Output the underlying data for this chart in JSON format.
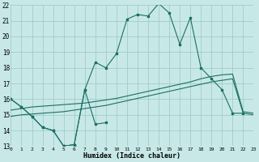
{
  "background_color": "#c8e8e8",
  "grid_color": "#a0cccc",
  "line_color": "#1a7060",
  "xlabel": "Humidex (Indice chaleur)",
  "xlim": [
    0,
    23
  ],
  "ylim": [
    13,
    22
  ],
  "yticks": [
    13,
    14,
    15,
    16,
    17,
    18,
    19,
    20,
    21,
    22
  ],
  "xticks": [
    0,
    1,
    2,
    3,
    4,
    5,
    6,
    7,
    8,
    9,
    10,
    11,
    12,
    13,
    14,
    15,
    16,
    17,
    18,
    19,
    20,
    21,
    22,
    23
  ],
  "s1_x": [
    0,
    1,
    2,
    3,
    4,
    5,
    6,
    7,
    8,
    9,
    10,
    11,
    12,
    13,
    14,
    15,
    16,
    17,
    18,
    19,
    20,
    21,
    22
  ],
  "s1_y": [
    16.0,
    15.5,
    14.9,
    14.2,
    14.0,
    13.0,
    13.1,
    16.6,
    18.35,
    18.0,
    18.9,
    21.1,
    21.4,
    21.3,
    22.1,
    21.5,
    19.5,
    21.2,
    18.0,
    17.3,
    16.6,
    15.1,
    15.1
  ],
  "s2_x": [
    0,
    1,
    2,
    3,
    4,
    5,
    6,
    7,
    8,
    9
  ],
  "s2_y": [
    16.0,
    15.5,
    14.9,
    14.2,
    14.0,
    13.0,
    13.1,
    16.6,
    14.4,
    14.5
  ],
  "s3_x": [
    0,
    1,
    2,
    3,
    4,
    5,
    6,
    7,
    8,
    9,
    10,
    11,
    12,
    13,
    14,
    15,
    16,
    17,
    18,
    19,
    20,
    21,
    22,
    23
  ],
  "s3_y": [
    14.9,
    15.0,
    15.05,
    15.1,
    15.15,
    15.2,
    15.3,
    15.4,
    15.5,
    15.6,
    15.75,
    15.9,
    16.05,
    16.2,
    16.35,
    16.5,
    16.65,
    16.8,
    16.95,
    17.1,
    17.2,
    17.3,
    15.1,
    15.0
  ],
  "s4_x": [
    0,
    1,
    2,
    3,
    4,
    5,
    6,
    7,
    8,
    9,
    10,
    11,
    12,
    13,
    14,
    15,
    16,
    17,
    18,
    19,
    20,
    21,
    22,
    23
  ],
  "s4_y": [
    15.3,
    15.4,
    15.5,
    15.55,
    15.6,
    15.65,
    15.7,
    15.75,
    15.85,
    15.95,
    16.05,
    16.2,
    16.35,
    16.5,
    16.65,
    16.8,
    16.95,
    17.1,
    17.3,
    17.45,
    17.55,
    17.6,
    15.2,
    15.1
  ]
}
